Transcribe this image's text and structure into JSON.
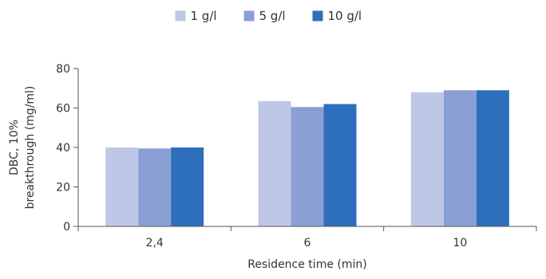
{
  "chart_data": {
    "type": "bar",
    "categories": [
      "2,4",
      "6",
      "10"
    ],
    "series": [
      {
        "name": "1 g/l",
        "values": [
          40,
          63.5,
          68
        ],
        "color": "#bfc7e6"
      },
      {
        "name": "5 g/l",
        "values": [
          39.5,
          60.5,
          69
        ],
        "color": "#8aa0d4"
      },
      {
        "name": "10 g/l",
        "values": [
          40,
          62,
          69
        ],
        "color": "#2e6fbd"
      }
    ],
    "xlabel": "Residence time (min)",
    "ylabel_lines": [
      "DBC, 10%",
      "breakthrough (mg/ml)"
    ],
    "yticks": [
      "0",
      "20",
      "40",
      "60",
      "80"
    ],
    "ylim": [
      0,
      80
    ],
    "grid": false,
    "legend": "top-center"
  }
}
